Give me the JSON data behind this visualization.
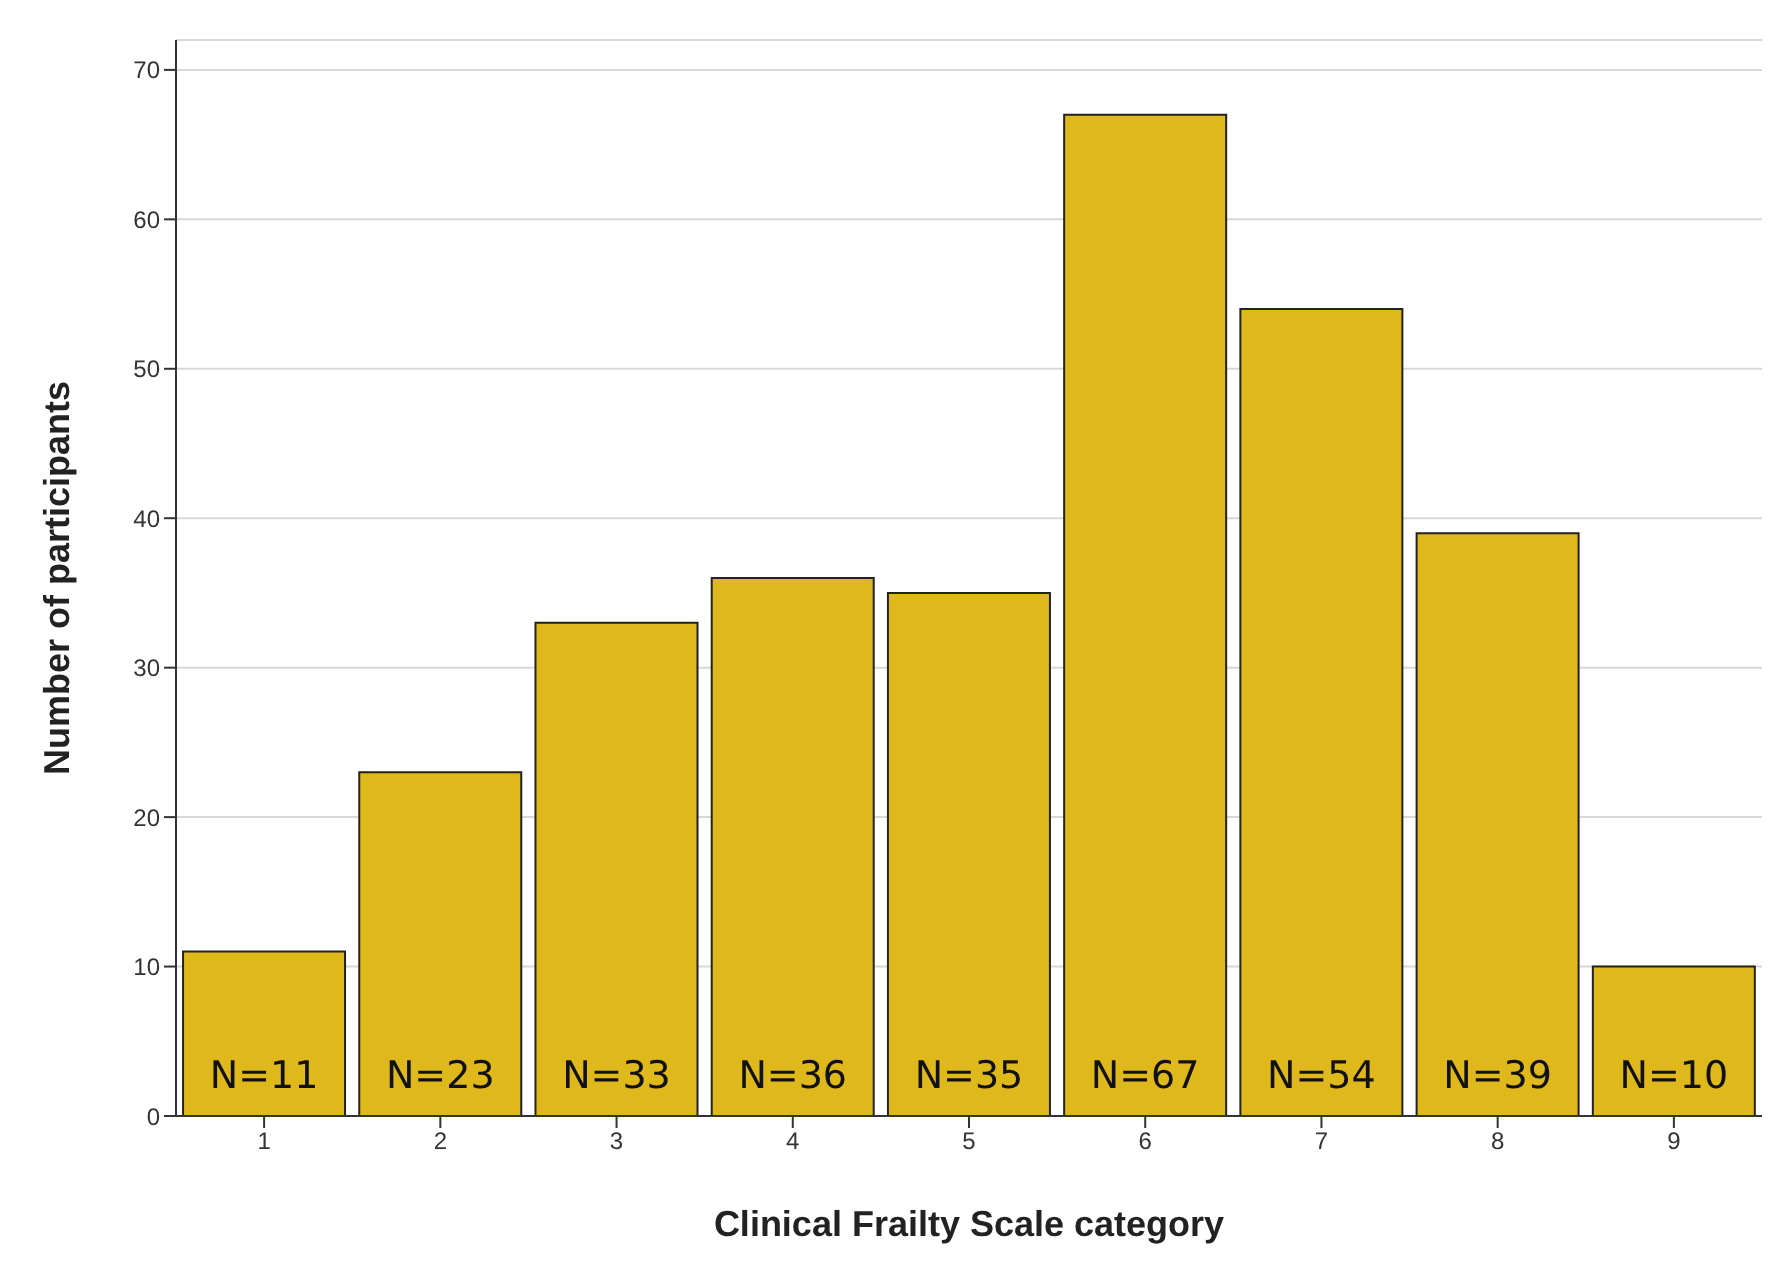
{
  "chart_data": {
    "type": "bar",
    "xlabel": "Clinical Frailty Scale category",
    "ylabel": "Number of participants",
    "categories": [
      "1",
      "2",
      "3",
      "4",
      "5",
      "6",
      "7",
      "8",
      "9"
    ],
    "values": [
      11,
      23,
      33,
      36,
      35,
      67,
      54,
      39,
      10
    ],
    "value_labels": [
      "N=11",
      "N=23",
      "N=33",
      "N=36",
      "N=35",
      "N=67",
      "N=54",
      "N=39",
      "N=10"
    ],
    "color": "#dfb81c",
    "ylim": [
      0,
      72
    ],
    "yticks": [
      0,
      10,
      20,
      30,
      40,
      50,
      60,
      70
    ],
    "grid": "y",
    "legend": false
  }
}
